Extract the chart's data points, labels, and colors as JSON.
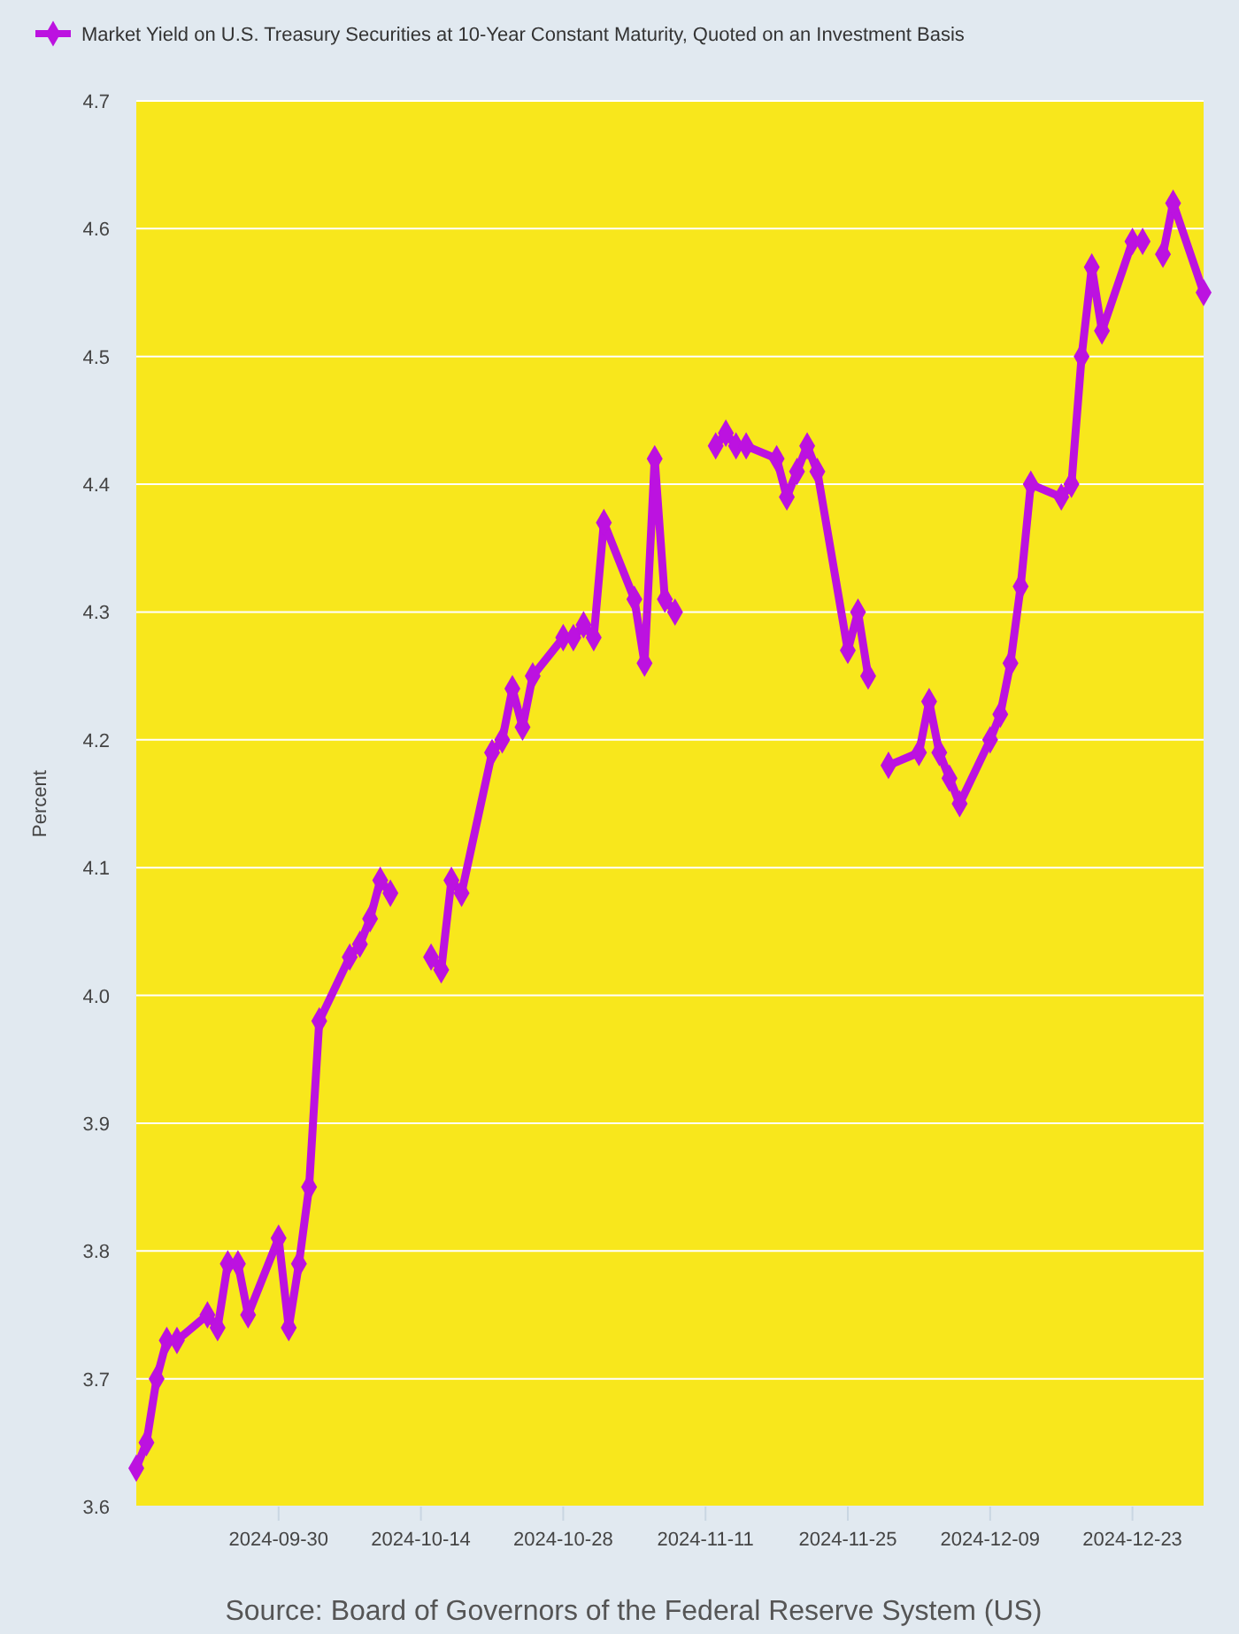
{
  "chart_data": {
    "type": "line",
    "ylabel": "Percent",
    "annotations": [
      "Source: Board of Governors of the Federal Reserve System (US)"
    ],
    "x": [
      "2024-09-16",
      "2024-09-17",
      "2024-09-18",
      "2024-09-19",
      "2024-09-20",
      "2024-09-23",
      "2024-09-24",
      "2024-09-25",
      "2024-09-26",
      "2024-09-27",
      "2024-09-30",
      "2024-10-01",
      "2024-10-02",
      "2024-10-03",
      "2024-10-04",
      "2024-10-07",
      "2024-10-08",
      "2024-10-09",
      "2024-10-10",
      "2024-10-11",
      "2024-10-14",
      "2024-10-15",
      "2024-10-16",
      "2024-10-17",
      "2024-10-18",
      "2024-10-21",
      "2024-10-22",
      "2024-10-23",
      "2024-10-24",
      "2024-10-25",
      "2024-10-28",
      "2024-10-29",
      "2024-10-30",
      "2024-10-31",
      "2024-11-01",
      "2024-11-04",
      "2024-11-05",
      "2024-11-06",
      "2024-11-07",
      "2024-11-08",
      "2024-11-11",
      "2024-11-12",
      "2024-11-13",
      "2024-11-14",
      "2024-11-15",
      "2024-11-18",
      "2024-11-19",
      "2024-11-20",
      "2024-11-21",
      "2024-11-22",
      "2024-11-25",
      "2024-11-26",
      "2024-11-27",
      "2024-11-28",
      "2024-11-29",
      "2024-12-02",
      "2024-12-03",
      "2024-12-04",
      "2024-12-05",
      "2024-12-06",
      "2024-12-09",
      "2024-12-10",
      "2024-12-11",
      "2024-12-12",
      "2024-12-13",
      "2024-12-16",
      "2024-12-17",
      "2024-12-18",
      "2024-12-19",
      "2024-12-20",
      "2024-12-23",
      "2024-12-24",
      "2024-12-25",
      "2024-12-26",
      "2024-12-27",
      "2024-12-30"
    ],
    "series": [
      {
        "name": "Market Yield on U.S. Treasury Securities at 10-Year Constant Maturity, Quoted on an Investment Basis",
        "color": "#bc12e0",
        "values": [
          3.63,
          3.65,
          3.7,
          3.73,
          3.73,
          3.75,
          3.74,
          3.79,
          3.79,
          3.75,
          3.81,
          3.74,
          3.79,
          3.85,
          3.98,
          4.03,
          4.04,
          4.06,
          4.09,
          4.08,
          null,
          4.03,
          4.02,
          4.09,
          4.08,
          4.19,
          4.2,
          4.24,
          4.21,
          4.25,
          4.28,
          4.28,
          4.29,
          4.28,
          4.37,
          4.31,
          4.26,
          4.42,
          4.31,
          4.3,
          null,
          4.43,
          4.44,
          4.43,
          4.43,
          4.42,
          4.39,
          4.41,
          4.43,
          4.41,
          4.27,
          4.3,
          4.25,
          null,
          4.18,
          4.19,
          4.23,
          4.19,
          4.17,
          4.15,
          4.2,
          4.22,
          4.26,
          4.32,
          4.4,
          4.39,
          4.4,
          4.5,
          4.57,
          4.52,
          4.59,
          4.59,
          null,
          4.58,
          4.62,
          4.55
        ]
      }
    ],
    "xlim": [
      "2024-09-16",
      "2024-12-30"
    ],
    "xticks": [
      "2024-09-30",
      "2024-10-14",
      "2024-10-28",
      "2024-11-11",
      "2024-11-25",
      "2024-12-09",
      "2024-12-23"
    ],
    "ylim": [
      3.6,
      4.7
    ],
    "yticks": [
      3.6,
      3.7,
      3.8,
      3.9,
      {
        "value": 4,
        "label": "4.0"
      },
      4.1,
      4.2,
      4.3,
      4.4,
      4.5,
      4.6,
      4.7
    ],
    "grid": "y",
    "legend": "top",
    "marker": "diamond",
    "line_style": "solid"
  }
}
